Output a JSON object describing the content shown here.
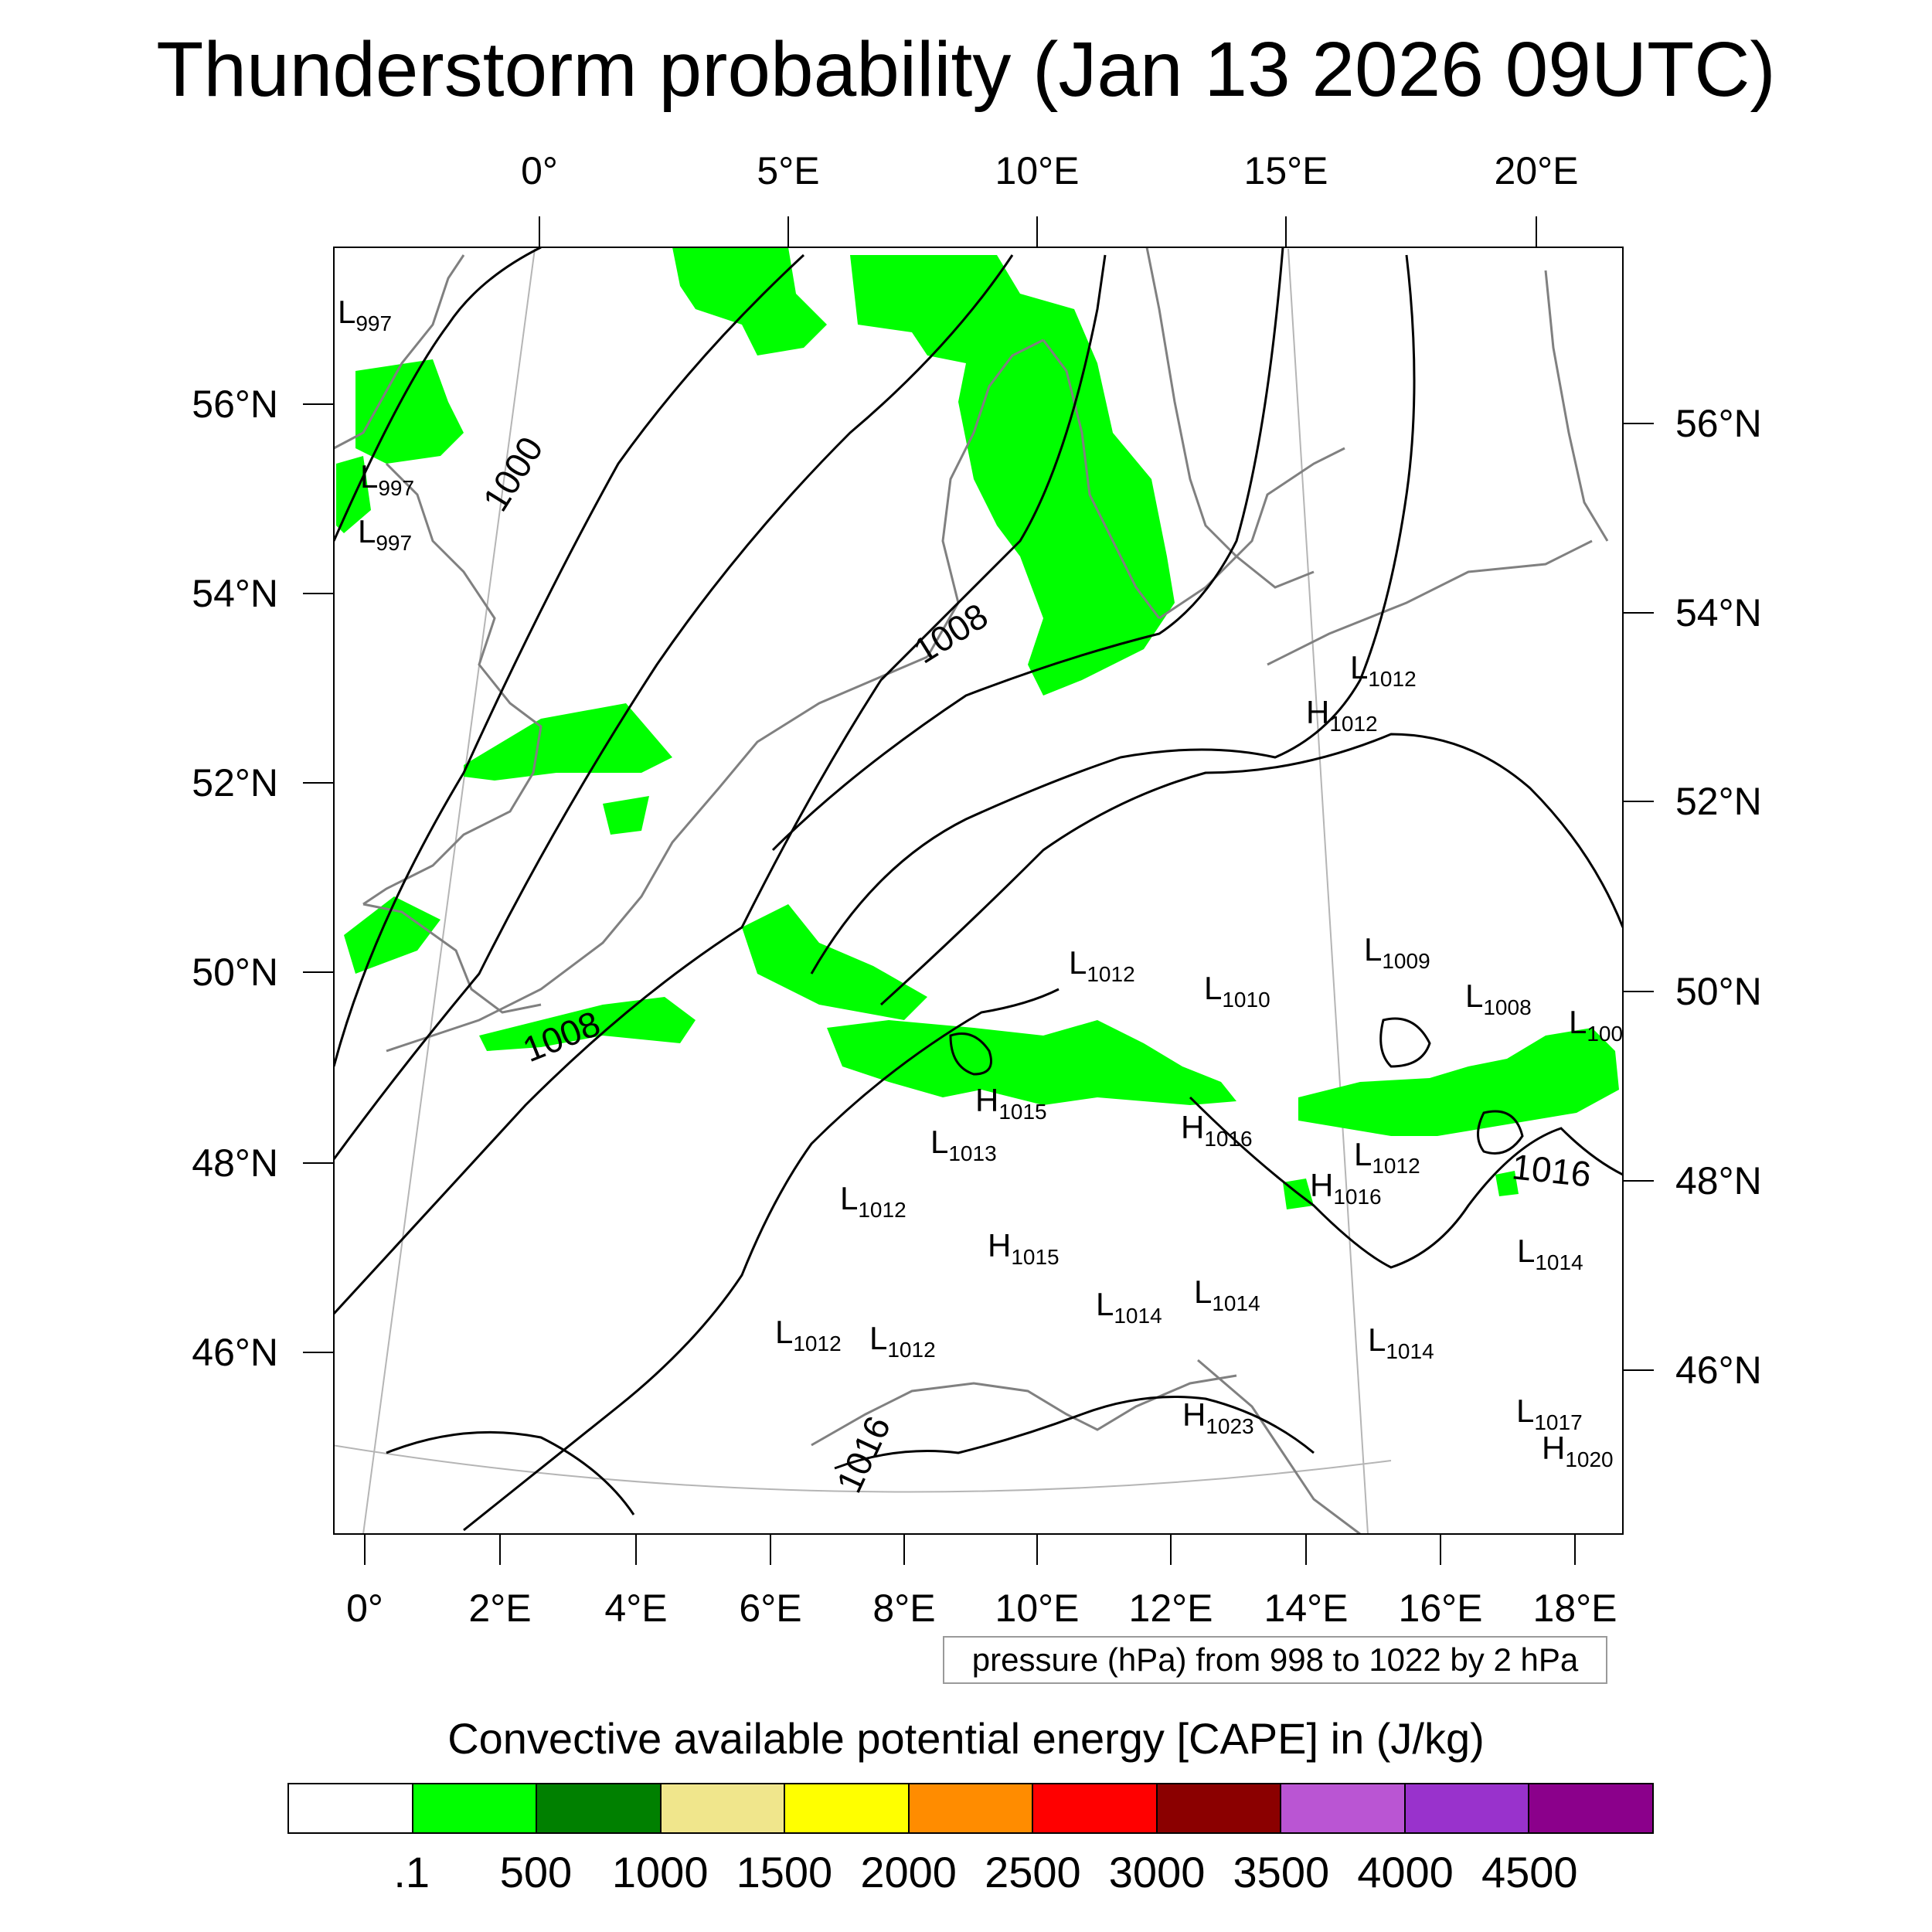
{
  "title": "Thunderstorm probability (Jan 13 2026 09UTC)",
  "map": {
    "top_lon_labels": [
      "0°",
      "5°E",
      "10°E",
      "15°E",
      "20°E"
    ],
    "bottom_lon_labels": [
      "0°",
      "2°E",
      "4°E",
      "6°E",
      "8°E",
      "10°E",
      "12°E",
      "14°E",
      "16°E",
      "18°E"
    ],
    "left_lat_labels": [
      "56°N",
      "54°N",
      "52°N",
      "50°N",
      "48°N",
      "46°N"
    ],
    "right_lat_labels": [
      "56°N",
      "54°N",
      "52°N",
      "50°N",
      "48°N",
      "46°N"
    ],
    "pressure_centers": [
      {
        "letter": "L",
        "value": "997"
      },
      {
        "letter": "L",
        "value": "997"
      },
      {
        "letter": "L",
        "value": "997"
      },
      {
        "letter": "L",
        "value": "1012"
      },
      {
        "letter": "H",
        "value": "1012"
      },
      {
        "letter": "L",
        "value": "1009"
      },
      {
        "letter": "L",
        "value": "1012"
      },
      {
        "letter": "L",
        "value": "1010"
      },
      {
        "letter": "L",
        "value": "1008"
      },
      {
        "letter": "L",
        "value": "100"
      },
      {
        "letter": "H",
        "value": "1015"
      },
      {
        "letter": "H",
        "value": "1016"
      },
      {
        "letter": "L",
        "value": "1013"
      },
      {
        "letter": "L",
        "value": "1012"
      },
      {
        "letter": "H",
        "value": "1016"
      },
      {
        "letter": "L",
        "value": "1012"
      },
      {
        "letter": "H",
        "value": "1015"
      },
      {
        "letter": "L",
        "value": "1014"
      },
      {
        "letter": "L",
        "value": "1014"
      },
      {
        "letter": "L",
        "value": "1014"
      },
      {
        "letter": "L",
        "value": "1012"
      },
      {
        "letter": "L",
        "value": "1012"
      },
      {
        "letter": "L",
        "value": "1014"
      },
      {
        "letter": "H",
        "value": "1023"
      },
      {
        "letter": "L",
        "value": "1017"
      },
      {
        "letter": "H",
        "value": "1020"
      }
    ],
    "contour_labels": [
      "1000",
      "1008",
      "1008",
      "1016",
      "1016"
    ]
  },
  "info_box": "pressure (hPa) from 998 to 1022 by 2 hPa",
  "colorbar": {
    "title": "Convective available potential energy [CAPE] in (J/kg)",
    "colors": [
      "#ffffff",
      "#00ff00",
      "#008000",
      "#f0e68c",
      "#ffff00",
      "#ff8c00",
      "#ff0000",
      "#8b0000",
      "#ba55d3",
      "#9932cc",
      "#8b008b"
    ],
    "labels": [
      ".1",
      "500",
      "1000",
      "1500",
      "2000",
      "2500",
      "3000",
      "3500",
      "4000",
      "4500"
    ]
  },
  "colors": {
    "cape_green": "#00ff00",
    "coast": "#808080",
    "isobar": "#000000",
    "grid": "#b0b0b0"
  }
}
